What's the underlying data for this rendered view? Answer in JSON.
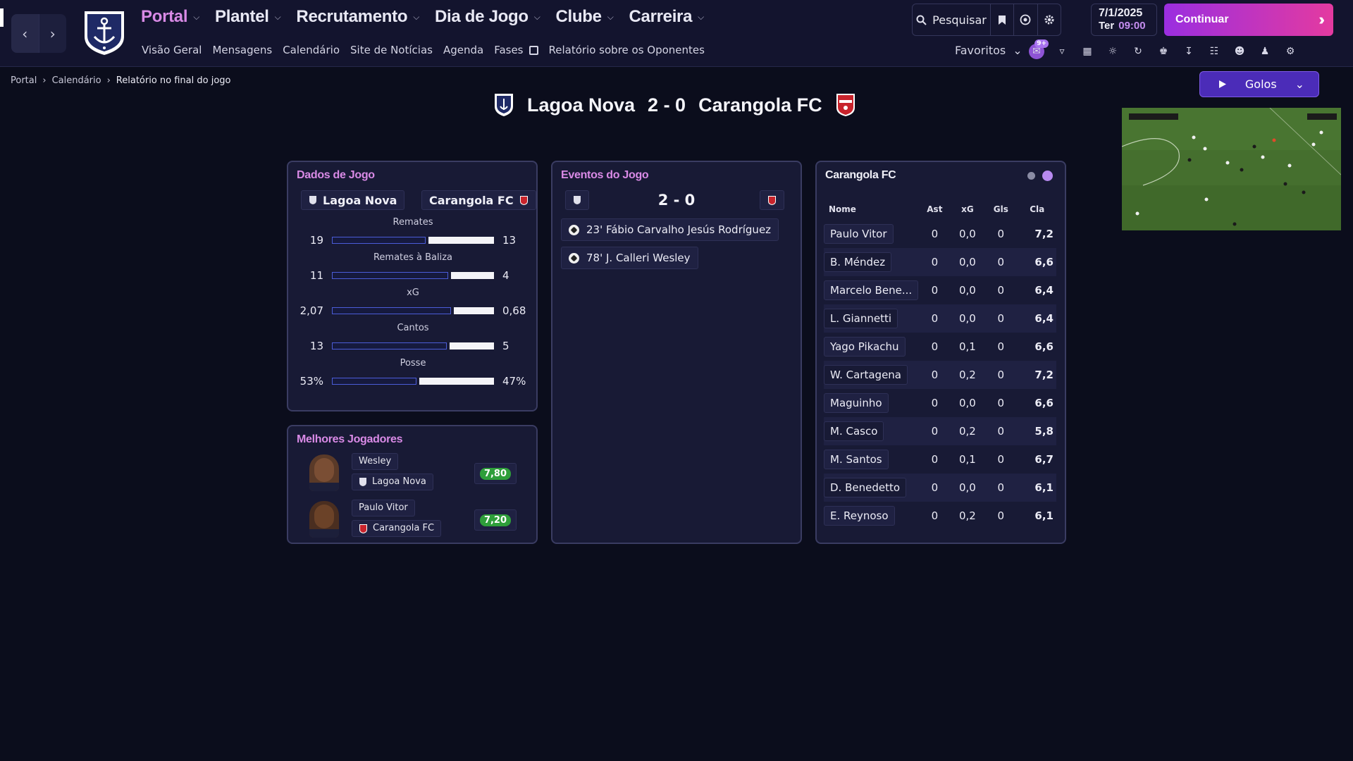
{
  "nav": {
    "items": [
      {
        "label": "Portal",
        "active": true
      },
      {
        "label": "Plantel"
      },
      {
        "label": "Recrutamento"
      },
      {
        "label": "Dia de Jogo"
      },
      {
        "label": "Clube"
      },
      {
        "label": "Carreira"
      }
    ],
    "sub": [
      "Visão Geral",
      "Mensagens",
      "Calendário",
      "Site de Notícias",
      "Agenda",
      "Fases",
      "Relatório sobre os Oponentes"
    ]
  },
  "toolbar": {
    "search_label": "Pesquisar",
    "date": "7/1/2025",
    "day": "Ter",
    "time": "09:00",
    "continue_label": "Continuar",
    "favorites_label": "Favoritos",
    "msg_badge": "9+"
  },
  "breadcrumb": [
    "Portal",
    "Calendário",
    "Relatório no final do jogo"
  ],
  "goals_button": "Golos",
  "match": {
    "home": "Lagoa Nova",
    "away": "Carangola FC",
    "score": "2 - 0"
  },
  "match_stats": {
    "title": "Dados de Jogo",
    "home": "Lagoa Nova",
    "away": "Carangola FC",
    "rows": [
      {
        "label": "Remates",
        "home": "19",
        "away": "13",
        "home_frac": 0.59
      },
      {
        "label": "Remates à Baliza",
        "home": "11",
        "away": "4",
        "home_frac": 0.73
      },
      {
        "label": "xG",
        "home": "2,07",
        "away": "0,68",
        "home_frac": 0.75
      },
      {
        "label": "Cantos",
        "home": "13",
        "away": "5",
        "home_frac": 0.72
      },
      {
        "label": "Posse",
        "home": "53%",
        "away": "47%",
        "home_frac": 0.53
      }
    ]
  },
  "best_players": {
    "title": "Melhores Jogadores",
    "players": [
      {
        "name": "Wesley",
        "club": "Lagoa Nova",
        "rating": "7,80"
      },
      {
        "name": "Paulo Vitor",
        "club": "Carangola FC",
        "rating": "7,20"
      }
    ]
  },
  "events": {
    "title": "Eventos do Jogo",
    "score": "2 - 0",
    "items": [
      {
        "text": "23' Fábio Carvalho Jesús Rodríguez"
      },
      {
        "text": "78' J. Calleri Wesley"
      }
    ]
  },
  "squad": {
    "title": "Carangola FC",
    "headers": [
      "Nome",
      "Ast",
      "xG",
      "Gls",
      "Cla"
    ],
    "rows": [
      [
        "Paulo Vitor",
        "0",
        "0,0",
        "0",
        "7,2"
      ],
      [
        "B. Méndez",
        "0",
        "0,0",
        "0",
        "6,6"
      ],
      [
        "Marcelo Bene...",
        "0",
        "0,0",
        "0",
        "6,4"
      ],
      [
        "L. Giannetti",
        "0",
        "0,0",
        "0",
        "6,4"
      ],
      [
        "Yago Pikachu",
        "0",
        "0,1",
        "0",
        "6,6"
      ],
      [
        "W. Cartagena",
        "0",
        "0,2",
        "0",
        "7,2"
      ],
      [
        "Maguinho",
        "0",
        "0,0",
        "0",
        "6,6"
      ],
      [
        "M. Casco",
        "0",
        "0,2",
        "0",
        "5,8"
      ],
      [
        "M. Santos",
        "0",
        "0,1",
        "0",
        "6,7"
      ],
      [
        "D. Benedetto",
        "0",
        "0,0",
        "0",
        "6,1"
      ],
      [
        "E. Reynoso",
        "0",
        "0,2",
        "0",
        "6,1"
      ]
    ]
  },
  "colors": {
    "accent": "#d98ae6",
    "home_bar": "#4b5cd8",
    "away_bar": "#f4f4f8",
    "rating_green": "#2e9e3a"
  }
}
